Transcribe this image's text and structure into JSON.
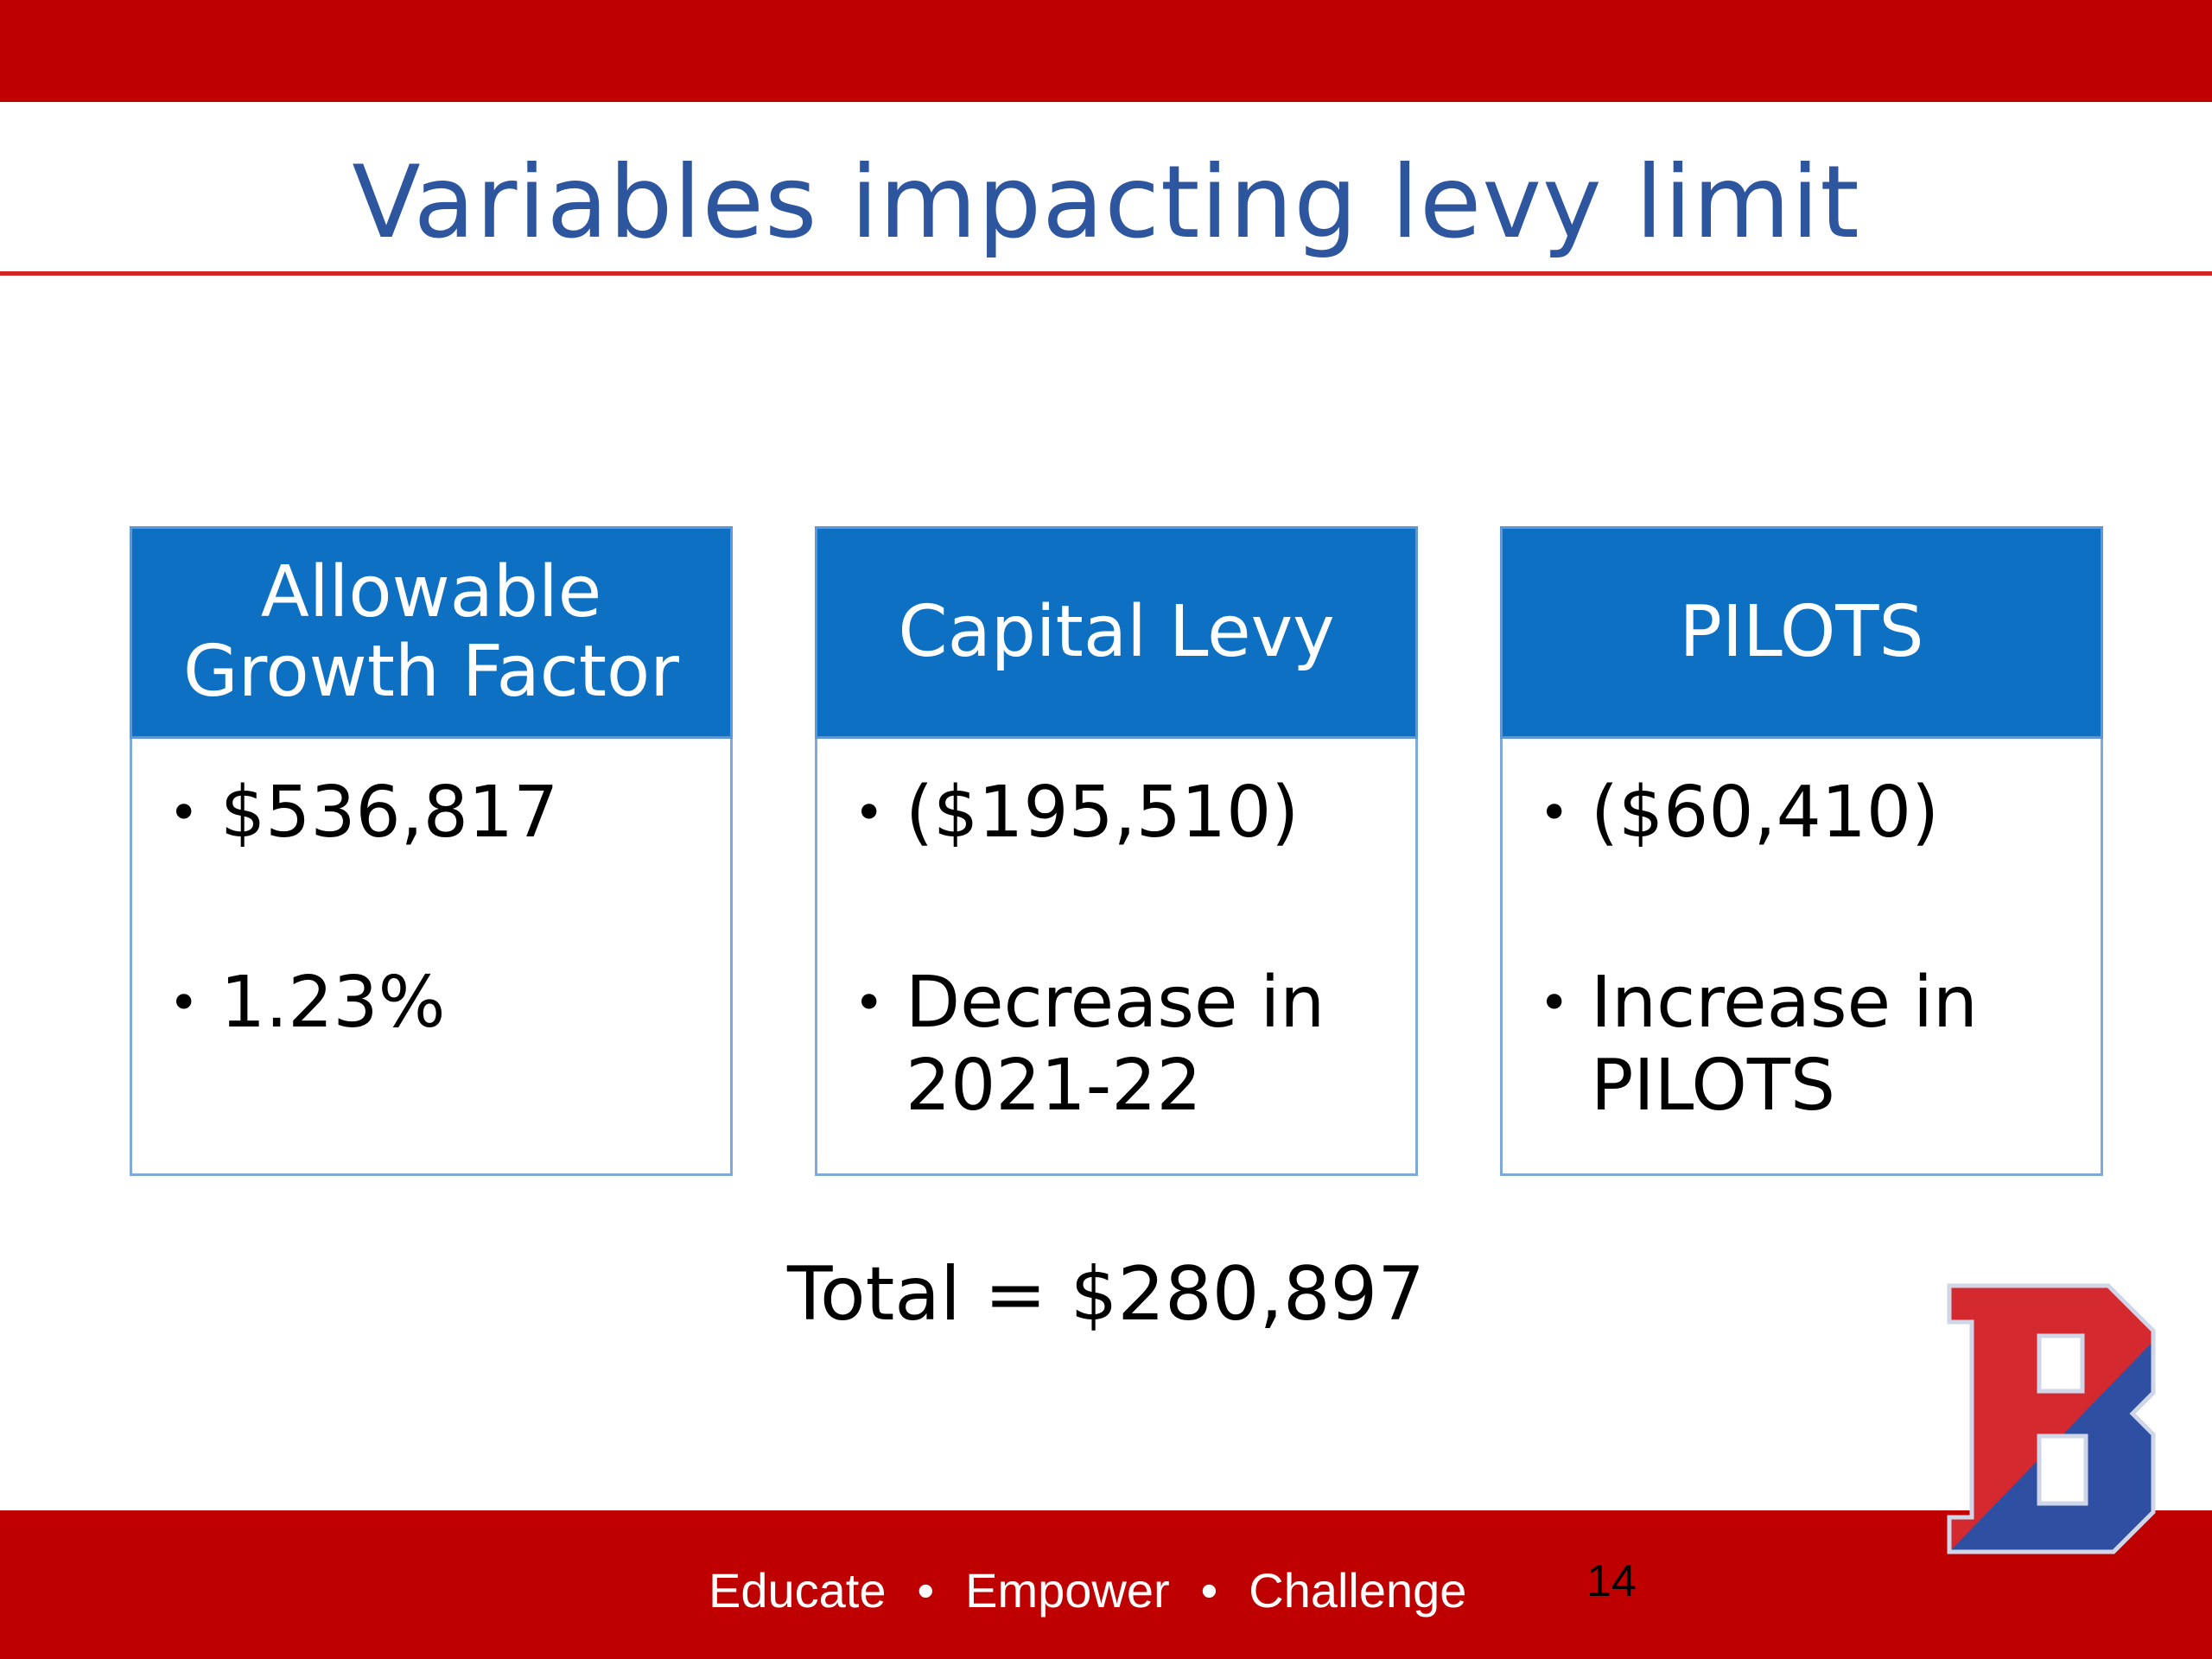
{
  "slide": {
    "title": "Variables impacting levy limit",
    "cards": [
      {
        "heading": "Allowable\nGrowth Factor",
        "bullets": [
          "$536,817",
          "1.23%"
        ]
      },
      {
        "heading": "Capital Levy",
        "bullets": [
          "($195,510)",
          "Decrease in\n2021-22"
        ]
      },
      {
        "heading": "PILOTS",
        "bullets": [
          "($60,410)",
          "Increase in\nPILOTS"
        ]
      }
    ],
    "total": "Total = $280,897",
    "footer": {
      "words": [
        "Educate",
        "Empower",
        "Challenge"
      ],
      "separator": "•",
      "page_number": "14"
    },
    "logo_letter": "B"
  },
  "colors": {
    "band_red": "#bf0000",
    "title_blue": "#2e569e",
    "card_header_blue": "#0e70c2",
    "card_border": "#7fa8dc",
    "logo_red": "#d42a2f",
    "logo_blue": "#2f4fa3"
  },
  "icons": {
    "logo": "block-letter-b-logo"
  }
}
